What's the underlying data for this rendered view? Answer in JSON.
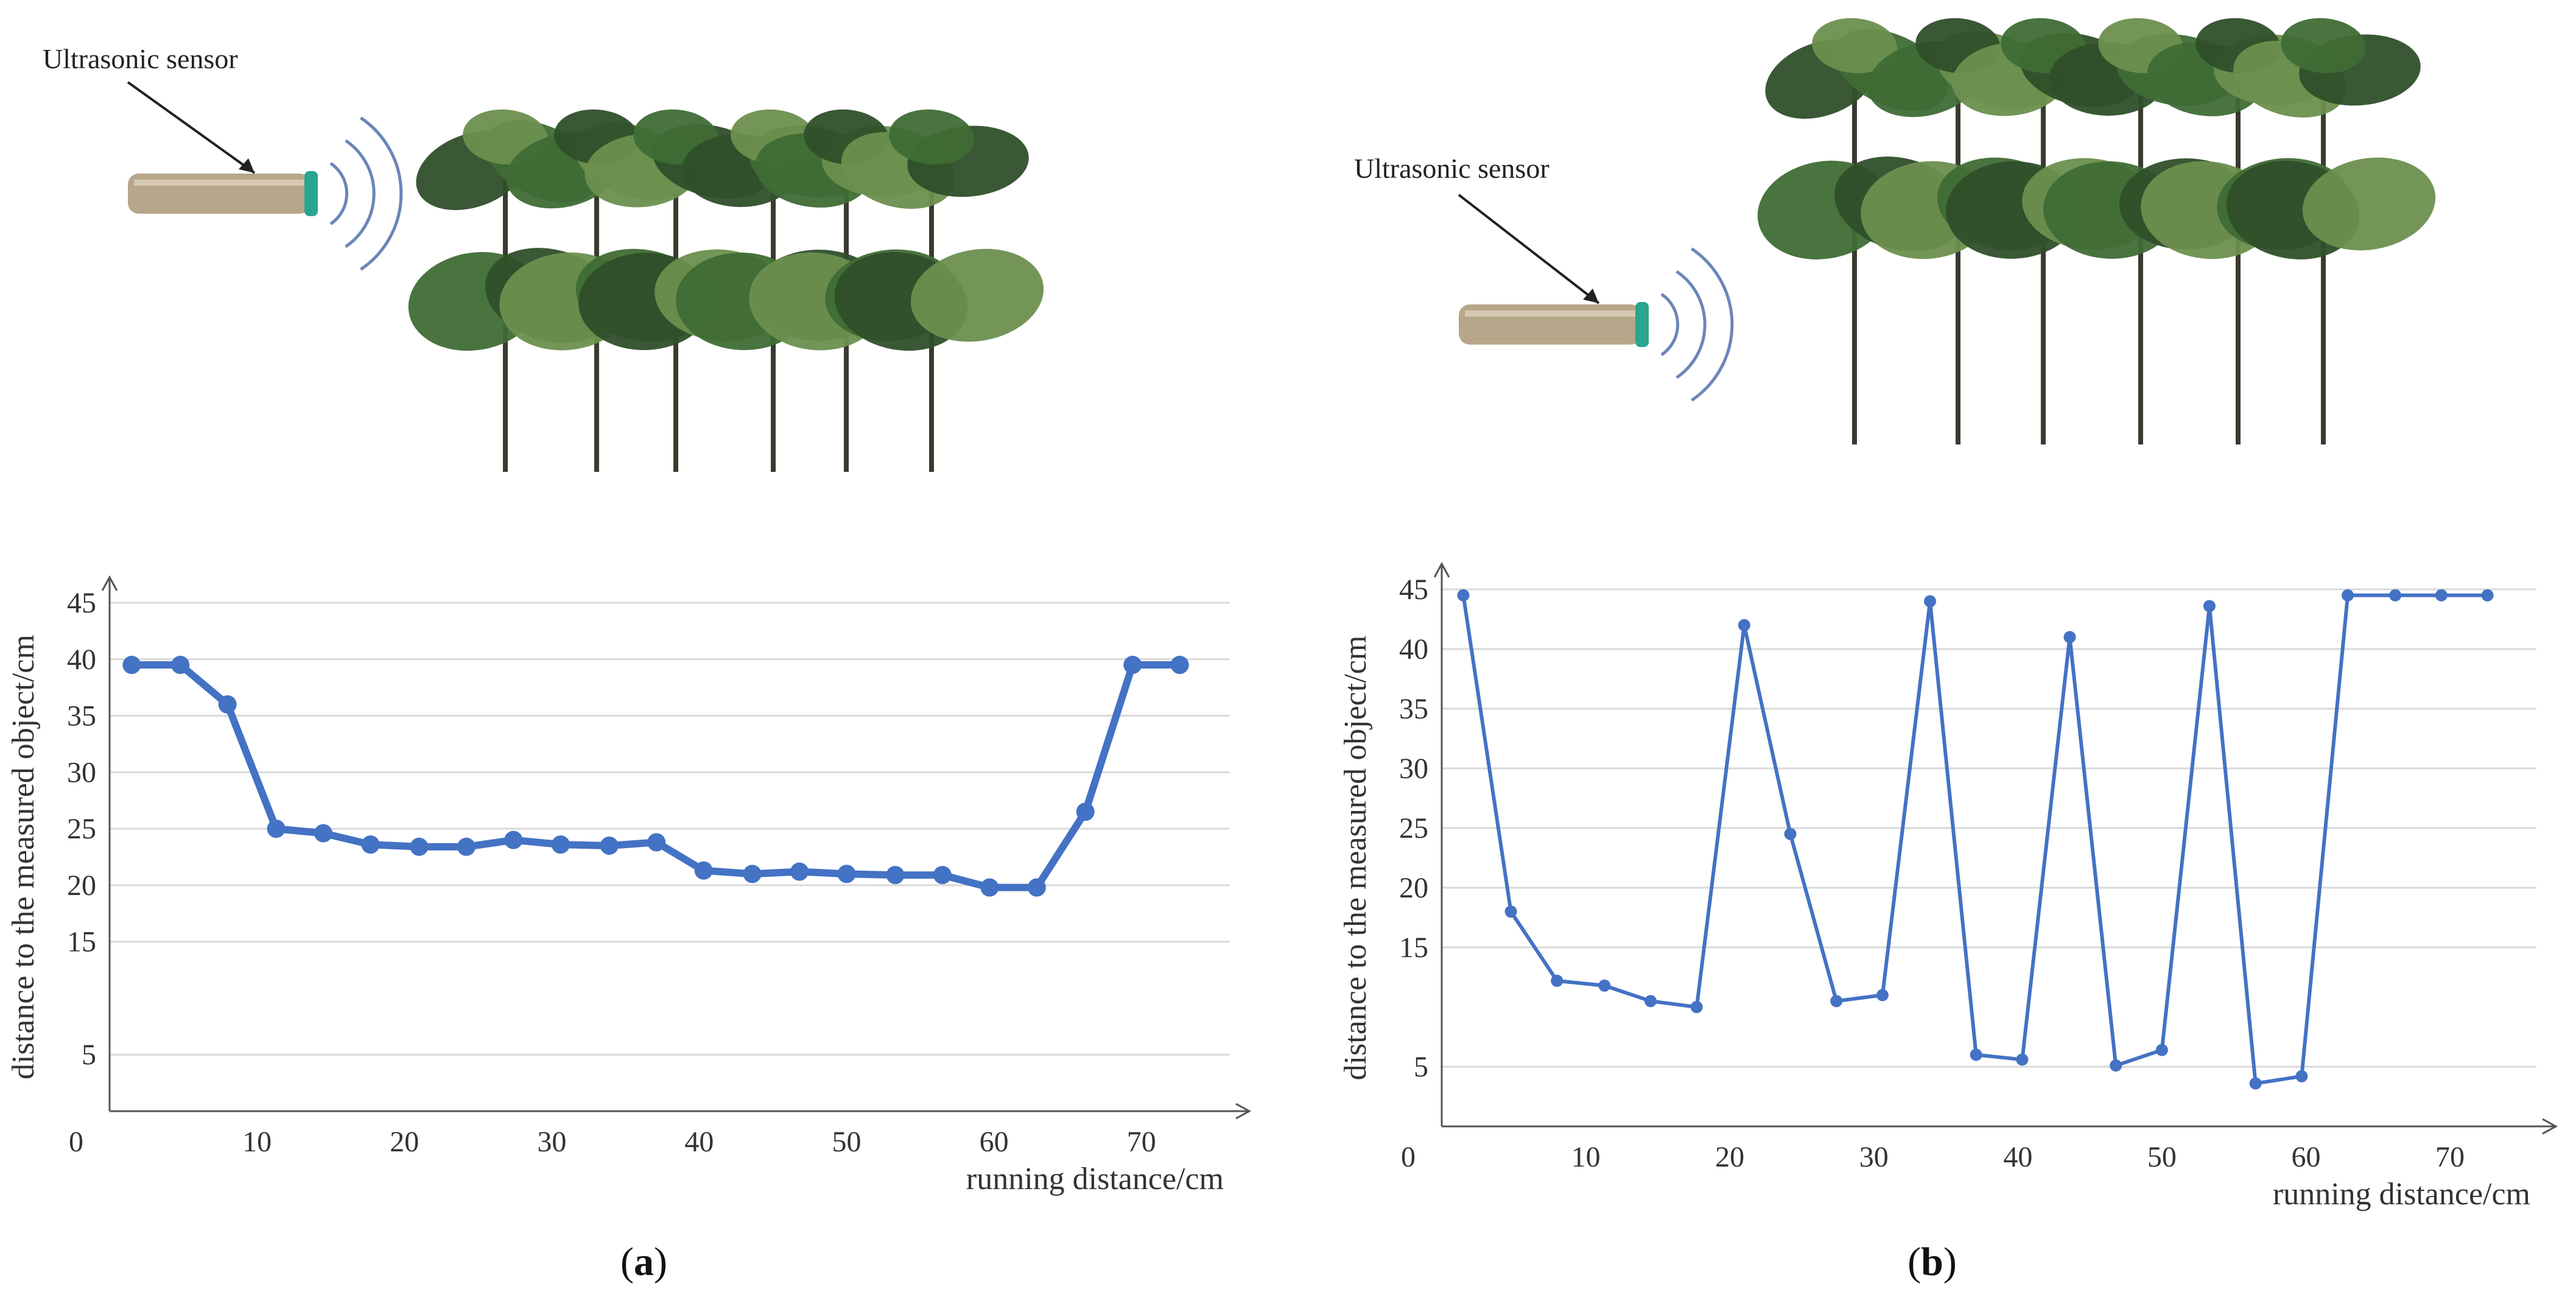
{
  "panels": [
    {
      "id": "a",
      "sensor_label": "Ultrasonic sensor",
      "caption": "a",
      "plants_rows": 2
    },
    {
      "id": "b",
      "sensor_label": "Ultrasonic sensor",
      "caption": "b",
      "plants_rows": 2
    }
  ],
  "colors": {
    "line": "#4472C4",
    "grid": "#d9d9d9",
    "axis": "#555555",
    "leaf_dark": "#2f4f2a",
    "leaf_mid": "#3f6b35",
    "leaf_light": "#6b8f4e",
    "stem": "#3a3a30",
    "sensor_body": "#b7a68a",
    "sensor_cap": "#2aa58f"
  },
  "chart_data": [
    {
      "type": "line",
      "title": "",
      "xlabel": "running distance/cm",
      "ylabel": "distance to the measured object/cm",
      "x_ticks": [
        "0",
        "10",
        "20",
        "30",
        "40",
        "50",
        "60",
        "70"
      ],
      "y_ticks": [
        "5",
        "15",
        "20",
        "25",
        "30",
        "35",
        "40",
        "45"
      ],
      "xlim": [
        0,
        76
      ],
      "ylim": [
        0,
        45
      ],
      "grid": true,
      "series": [
        {
          "x": [
            1.5,
            4.8,
            8,
            11.3,
            14.5,
            17.7,
            21,
            24.2,
            27.4,
            30.6,
            33.9,
            37.1,
            40.3,
            43.6,
            46.8,
            50,
            53.3,
            56.5,
            59.7,
            62.9,
            66.2,
            69.4,
            72.6
          ],
          "y": [
            39.5,
            39.5,
            36,
            25,
            24.6,
            23.6,
            23.4,
            23.4,
            24,
            23.6,
            23.5,
            23.8,
            21.3,
            21,
            21.2,
            21,
            20.9,
            20.9,
            19.8,
            19.8,
            26.5,
            39.5,
            39.5
          ]
        }
      ]
    },
    {
      "type": "line",
      "title": "",
      "xlabel": "running distance/cm",
      "ylabel": "distance to the measured object/cm",
      "x_ticks": [
        "0",
        "10",
        "20",
        "30",
        "40",
        "50",
        "60",
        "70"
      ],
      "y_ticks": [
        "5",
        "15",
        "20",
        "25",
        "30",
        "35",
        "40",
        "45"
      ],
      "xlim": [
        0,
        76
      ],
      "ylim": [
        0,
        45
      ],
      "grid": true,
      "series": [
        {
          "x": [
            1.5,
            4.8,
            8,
            11.3,
            14.5,
            17.7,
            21,
            24.2,
            27.4,
            30.6,
            33.9,
            37.1,
            40.3,
            43.6,
            46.8,
            50,
            53.3,
            56.5,
            59.7,
            62.9,
            66.2,
            69.4,
            72.6
          ],
          "y": [
            44.5,
            18,
            12.2,
            11.8,
            10.5,
            10,
            42,
            24.5,
            10.5,
            11,
            44,
            6,
            5.6,
            41,
            5.1,
            6.4,
            43.6,
            3.6,
            4.2,
            44.5,
            44.5,
            44.5,
            44.5
          ]
        }
      ]
    }
  ]
}
